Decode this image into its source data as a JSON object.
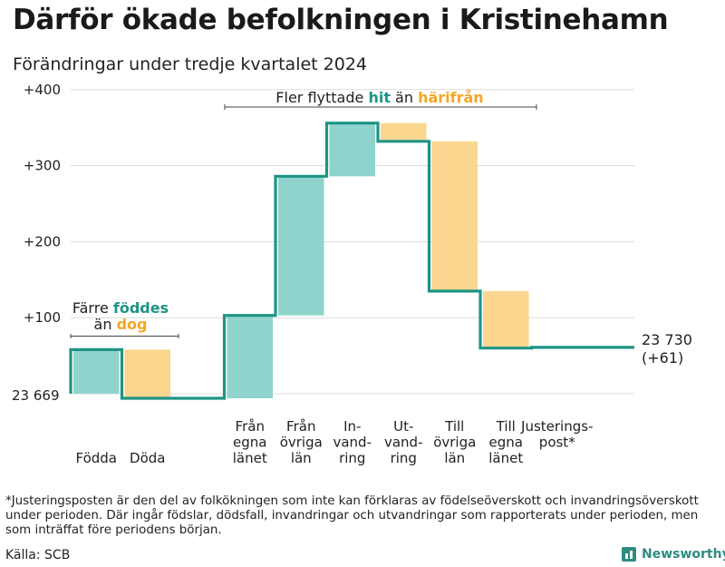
{
  "title": "Därför ökade befolkningen i Kristinehamn",
  "subtitle": "Förändringar under tredje kvartalet 2024",
  "colors": {
    "positive": "#8fd4cc",
    "negative": "#fad68f",
    "line": "#1e9485",
    "teal_text": "#1e9485",
    "orange_text": "#f5a623"
  },
  "chart_data": {
    "type": "waterfall",
    "start_value": 23669,
    "start_label": "23 669",
    "end_label_value": "23 730",
    "end_label_change": "(+61)",
    "ylim": [
      0,
      400
    ],
    "y_ticks": [
      {
        "value": 100,
        "label": "+100"
      },
      {
        "value": 200,
        "label": "+200"
      },
      {
        "value": 300,
        "label": "+300"
      },
      {
        "value": 400,
        "label": "+400"
      }
    ],
    "steps": [
      {
        "label": [
          "Födda"
        ],
        "change": 58
      },
      {
        "label": [
          "Döda"
        ],
        "change": -64
      },
      {
        "label": [
          ""
        ],
        "change": 0
      },
      {
        "label": [
          "Från",
          "egna",
          "länet"
        ],
        "change": 109
      },
      {
        "label": [
          "Från",
          "övriga",
          "län"
        ],
        "change": 183
      },
      {
        "label": [
          "In-",
          "vand-",
          "ring"
        ],
        "change": 70
      },
      {
        "label": [
          "Ut-",
          "vand-",
          "ring"
        ],
        "change": -24
      },
      {
        "label": [
          "Till",
          "övriga",
          "län"
        ],
        "change": -197
      },
      {
        "label": [
          "Till",
          "egna",
          "länet"
        ],
        "change": -75
      },
      {
        "label": [
          "Justerings-",
          "post*"
        ],
        "change": 1
      }
    ],
    "annotations": {
      "births": {
        "line1": "Färre",
        "line1_highlight": "föddes",
        "line2": "än",
        "line2_highlight": "dog"
      },
      "migration": {
        "text1": "Fler flyttade",
        "highlight1": "hit",
        "text2": "än",
        "highlight2": "härifrån"
      }
    }
  },
  "footnote": "*Justeringsposten är den del av folkökningen som inte kan förklaras av födelseöverskott och invandringsöverskott under perioden. Där ingår födslar, dödsfall, invandringar och utvandringar som rapporterats under perioden, men som inträffat före periodens början.",
  "source": "Källa: SCB",
  "brand": "Newsworthy"
}
